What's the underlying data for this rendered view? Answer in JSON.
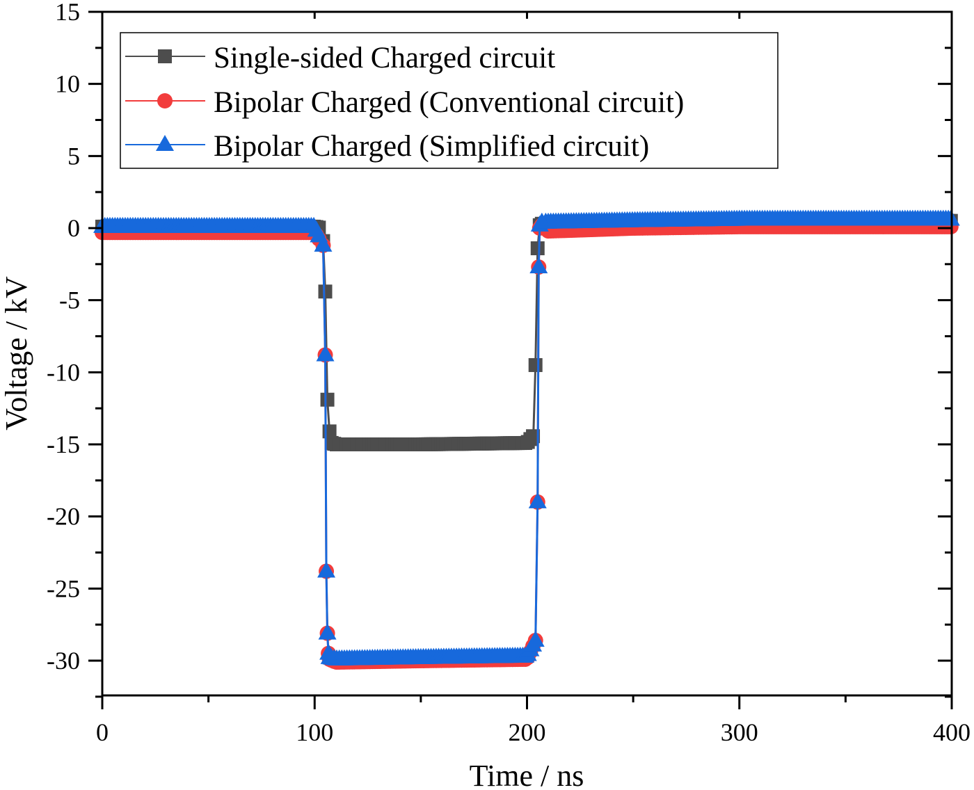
{
  "chart_data": {
    "type": "line",
    "title": "",
    "xlabel": "Time / ns",
    "ylabel": "Voltage / kV",
    "xlim": [
      0,
      400
    ],
    "ylim": [
      -32.5,
      15
    ],
    "x_ticks": [
      0,
      100,
      200,
      300,
      400
    ],
    "x_tick_labels": [
      "0",
      "100",
      "200",
      "300",
      "400"
    ],
    "x_minor_ticks": [
      50,
      150,
      250,
      350
    ],
    "y_ticks": [
      15,
      10,
      5,
      0,
      -5,
      -10,
      -15,
      -20,
      -25,
      -30
    ],
    "y_tick_labels": [
      "15",
      "10",
      "5",
      "0",
      "-5",
      "-10",
      "-15",
      "-20",
      "-25",
      "-30"
    ],
    "grid": false,
    "legend_position": "upper left",
    "series": [
      {
        "name": "Single-sided Charged circuit",
        "color": "#4d4d4d",
        "marker": "square",
        "x": [
          0,
          50,
          100,
          103,
          104,
          105,
          106,
          107,
          108,
          110,
          150,
          200,
          203,
          204,
          205,
          206,
          207,
          210,
          250,
          300,
          350,
          400
        ],
        "y": [
          0.1,
          0.1,
          0.1,
          0,
          -0.9,
          -4.4,
          -11.9,
          -14.1,
          -14.9,
          -15.0,
          -15.0,
          -14.9,
          -14.4,
          -9.5,
          -1.4,
          0.2,
          0.3,
          0.3,
          0.4,
          0.5,
          0.5,
          0.5
        ]
      },
      {
        "name": "Bipolar Charged (Conventional circuit)",
        "color": "#f23c3c",
        "marker": "circle",
        "x": [
          0,
          50,
          100,
          104,
          105,
          105.5,
          106,
          106.5,
          107,
          110,
          150,
          200,
          204,
          205,
          205.5,
          206,
          207,
          210,
          250,
          300,
          350,
          400
        ],
        "y": [
          -0.3,
          -0.3,
          -0.3,
          -1.2,
          -8.8,
          -23.8,
          -28.1,
          -29.5,
          -29.9,
          -30.1,
          -30.0,
          -29.9,
          -28.6,
          -19.0,
          -2.7,
          0.0,
          0.2,
          -0.2,
          0.0,
          0.1,
          0.1,
          0.1
        ]
      },
      {
        "name": "Bipolar Charged (Simplified circuit)",
        "color": "#1769dc",
        "marker": "triangle",
        "x": [
          0,
          50,
          100,
          104,
          105,
          105.5,
          106,
          106.5,
          107,
          110,
          150,
          200,
          204,
          205,
          205.5,
          206,
          207,
          210,
          250,
          300,
          350,
          400
        ],
        "y": [
          0.1,
          0.1,
          0.1,
          -1.2,
          -8.8,
          -23.8,
          -28.1,
          -29.5,
          -29.8,
          -29.9,
          -29.8,
          -29.7,
          -28.6,
          -19.0,
          -2.7,
          0.2,
          0.4,
          0.4,
          0.5,
          0.6,
          0.6,
          0.6
        ]
      }
    ]
  },
  "legend": {
    "items": [
      {
        "label": "Single-sided Charged circuit",
        "color": "#4d4d4d",
        "marker": "square"
      },
      {
        "label": "Bipolar Charged (Conventional circuit)",
        "color": "#f23c3c",
        "marker": "circle"
      },
      {
        "label": "Bipolar Charged (Simplified circuit)",
        "color": "#1769dc",
        "marker": "triangle"
      }
    ]
  }
}
